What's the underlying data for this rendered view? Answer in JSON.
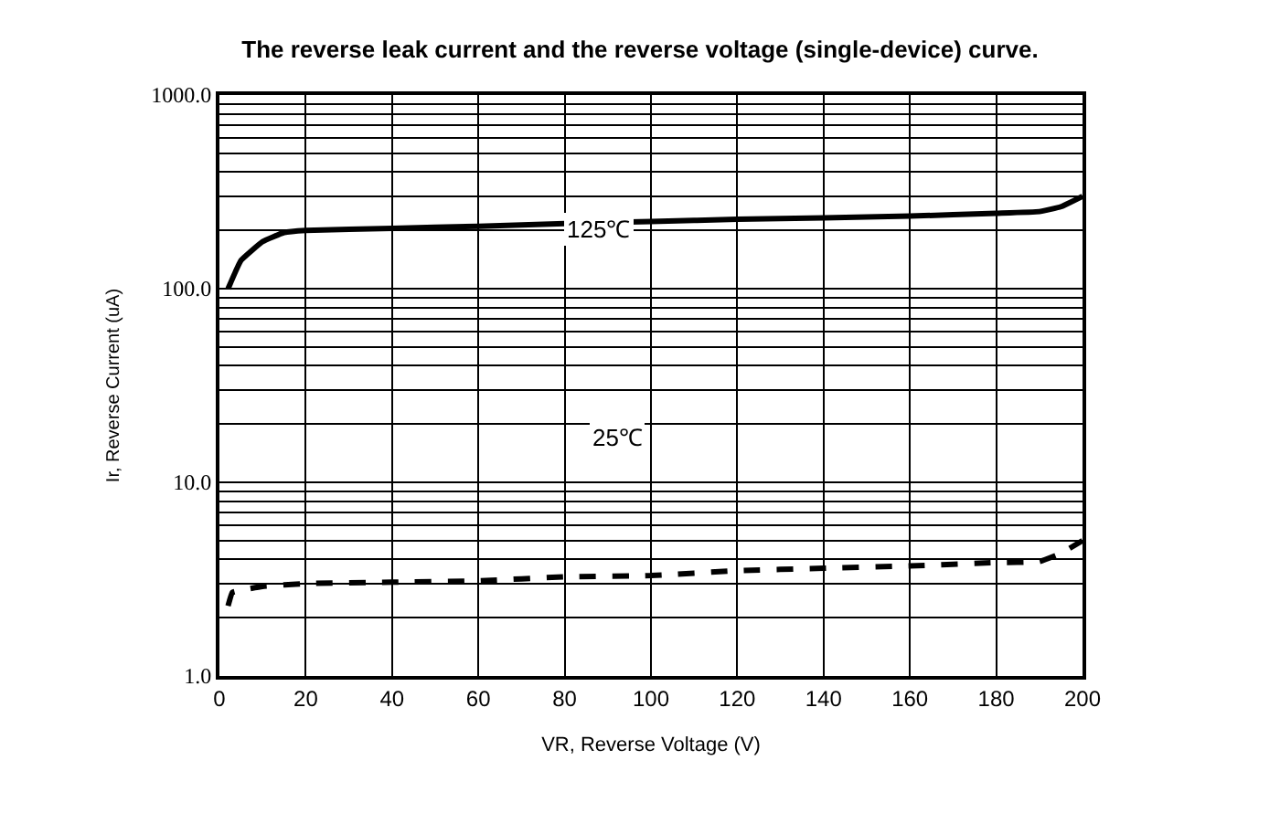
{
  "chart_data": {
    "type": "line",
    "title": "The reverse leak current and the reverse voltage (single-device) curve.",
    "xlabel": "VR, Reverse Voltage (V)",
    "ylabel": "Ir, Reverse Current (uA)",
    "log": "y",
    "grid": true,
    "legend": false,
    "xlim": [
      0,
      200
    ],
    "xticks": [
      0,
      20,
      40,
      60,
      80,
      100,
      120,
      140,
      160,
      180,
      200
    ],
    "ylim": [
      1,
      1000
    ],
    "yticks": [
      {
        "value": 1,
        "label": "1.0"
      },
      {
        "value": 2,
        "label": null
      },
      {
        "value": 3,
        "label": null
      },
      {
        "value": 4,
        "label": null
      },
      {
        "value": 5,
        "label": null
      },
      {
        "value": 6,
        "label": null
      },
      {
        "value": 7,
        "label": null
      },
      {
        "value": 8,
        "label": null
      },
      {
        "value": 9,
        "label": null
      },
      {
        "value": 10,
        "label": "10.0"
      },
      {
        "value": 20,
        "label": null
      },
      {
        "value": 30,
        "label": null
      },
      {
        "value": 40,
        "label": null
      },
      {
        "value": 50,
        "label": null
      },
      {
        "value": 60,
        "label": null
      },
      {
        "value": 70,
        "label": null
      },
      {
        "value": 80,
        "label": null
      },
      {
        "value": 90,
        "label": null
      },
      {
        "value": 100,
        "label": "100.0"
      },
      {
        "value": 200,
        "label": null
      },
      {
        "value": 300,
        "label": null
      },
      {
        "value": 400,
        "label": null
      },
      {
        "value": 500,
        "label": null
      },
      {
        "value": 600,
        "label": null
      },
      {
        "value": 700,
        "label": null
      },
      {
        "value": 800,
        "label": null
      },
      {
        "value": 900,
        "label": null
      },
      {
        "value": 1000,
        "label": "1000.0"
      }
    ],
    "annotations": [
      "125℃",
      "25℃"
    ],
    "series": [
      {
        "color": "#000000",
        "line_style": "solid",
        "x": [
          2,
          5,
          10,
          15,
          20,
          40,
          60,
          80,
          100,
          120,
          140,
          160,
          180,
          190,
          195,
          200
        ],
        "values": [
          100,
          140,
          175,
          195,
          200,
          205,
          210,
          217,
          222,
          228,
          232,
          237,
          245,
          250,
          265,
          300
        ]
      },
      {
        "color": "#000000",
        "line_style": "dashed",
        "x": [
          2,
          3,
          6,
          10,
          20,
          40,
          60,
          80,
          100,
          120,
          140,
          160,
          180,
          190,
          195,
          200
        ],
        "values": [
          2.3,
          2.7,
          2.8,
          2.9,
          3.0,
          3.05,
          3.1,
          3.25,
          3.3,
          3.5,
          3.6,
          3.7,
          3.85,
          3.9,
          4.3,
          5.0
        ]
      }
    ]
  }
}
